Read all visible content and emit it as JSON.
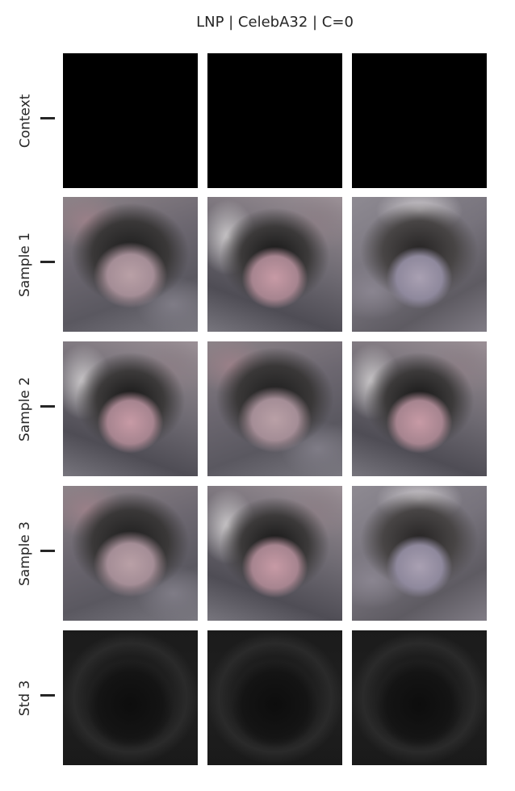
{
  "title": "LNP | CelebA32 | C=0",
  "rows": [
    {
      "label": "Context"
    },
    {
      "label": "Sample 1"
    },
    {
      "label": "Sample 2"
    },
    {
      "label": "Sample 3"
    },
    {
      "label": "Std 3"
    }
  ],
  "columns": 3
}
